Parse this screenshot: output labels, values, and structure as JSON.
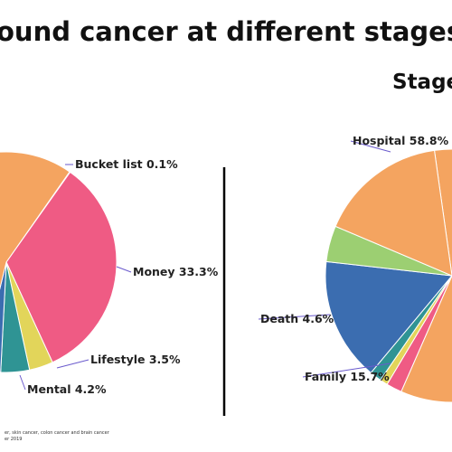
{
  "title": "ound cancer at different stages",
  "right_chart_title": "Stage",
  "footnote": {
    "line1": "er, skin cancer, colon cancer and brain cancer",
    "line2": "er 2019"
  },
  "chart_data": [
    {
      "type": "pie",
      "title": "",
      "slices": [
        {
          "label": "Bucket list",
          "value": 0.1,
          "display": "Bucket list 0.1%",
          "color": "#f4a460"
        },
        {
          "label": "Money",
          "value": 33.3,
          "display": "Money 33.3%",
          "color": "#ef5b84"
        },
        {
          "label": "Lifestyle",
          "value": 3.5,
          "display": "Lifestyle 3.5%",
          "color": "#e2d55a"
        },
        {
          "label": "Mental",
          "value": 4.2,
          "display": "Mental 4.2%",
          "color": "#2f9494"
        },
        {
          "label": "",
          "value": 3.0,
          "display": "",
          "color": "#3b6db0"
        },
        {
          "label": "",
          "value": 55.9,
          "display": "",
          "color": "#f4a460"
        }
      ]
    },
    {
      "type": "pie",
      "title": "Stage",
      "slices": [
        {
          "label": "Hospital",
          "value": 58.8,
          "display": "Hospital 58.8%",
          "color": "#f4a460"
        },
        {
          "label": "",
          "value": 2.0,
          "display": "",
          "color": "#ef5b84"
        },
        {
          "label": "",
          "value": 1.0,
          "display": "",
          "color": "#e2d55a"
        },
        {
          "label": "",
          "value": 1.5,
          "display": "",
          "color": "#2f9494"
        },
        {
          "label": "Family",
          "value": 15.7,
          "display": "Family 15.7%",
          "color": "#3b6db0"
        },
        {
          "label": "Death",
          "value": 4.6,
          "display": "Death 4.6%",
          "color": "#9ccf72"
        },
        {
          "label": "",
          "value": 16.4,
          "display": "",
          "color": "#f4a460"
        }
      ]
    }
  ]
}
